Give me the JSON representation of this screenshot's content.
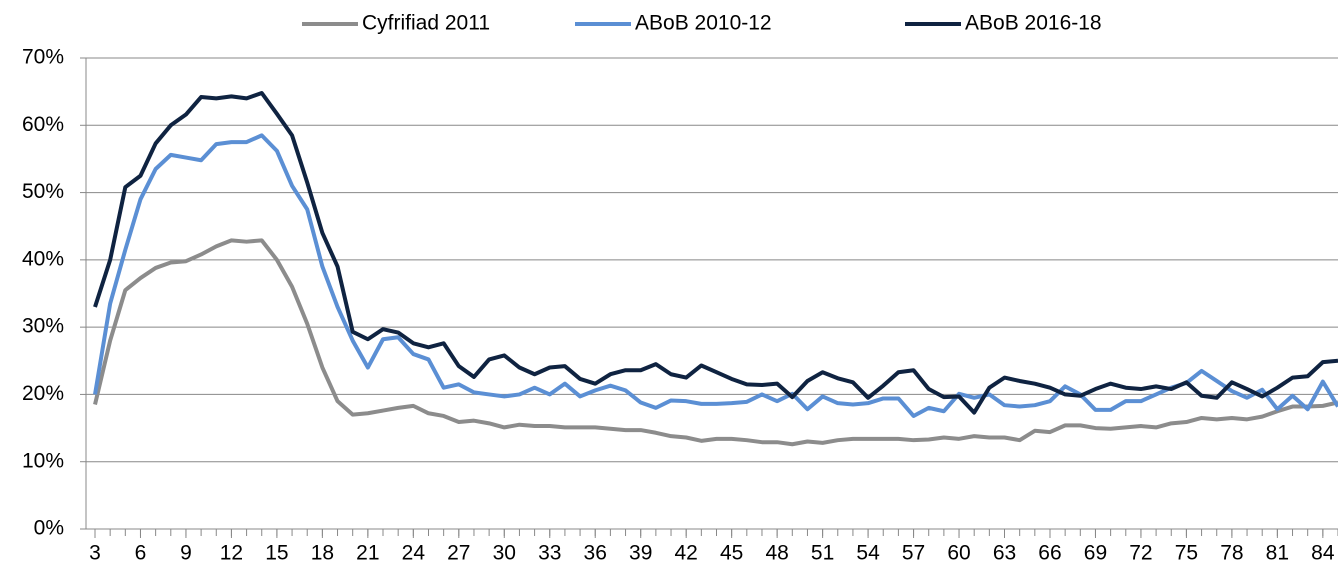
{
  "chart_data": {
    "type": "line",
    "x": [
      3,
      4,
      5,
      6,
      7,
      8,
      9,
      10,
      11,
      12,
      13,
      14,
      15,
      16,
      17,
      18,
      19,
      20,
      21,
      22,
      23,
      24,
      25,
      26,
      27,
      28,
      29,
      30,
      31,
      32,
      33,
      34,
      35,
      36,
      37,
      38,
      39,
      40,
      41,
      42,
      43,
      44,
      45,
      46,
      47,
      48,
      49,
      50,
      51,
      52,
      53,
      54,
      55,
      56,
      57,
      58,
      59,
      60,
      61,
      62,
      63,
      64,
      65,
      66,
      67,
      68,
      69,
      70,
      71,
      72,
      73,
      74,
      75,
      76,
      77,
      78,
      79,
      80,
      81,
      82,
      83,
      84,
      85
    ],
    "xlim": [
      3,
      85
    ],
    "xticks": [
      3,
      6,
      9,
      12,
      15,
      18,
      21,
      24,
      27,
      30,
      33,
      36,
      39,
      42,
      45,
      48,
      51,
      54,
      57,
      60,
      63,
      66,
      69,
      72,
      75,
      78,
      81,
      84
    ],
    "ylim": [
      0,
      70
    ],
    "yticks": [
      {
        "value": 0,
        "label": "0%"
      },
      {
        "value": 10,
        "label": "10%"
      },
      {
        "value": 20,
        "label": "20%"
      },
      {
        "value": 30,
        "label": "30%"
      },
      {
        "value": 40,
        "label": "40%"
      },
      {
        "value": 50,
        "label": "50%"
      },
      {
        "value": 60,
        "label": "60%"
      },
      {
        "value": 70,
        "label": "70%"
      }
    ],
    "grid": true,
    "legend": "top",
    "series": [
      {
        "name": "Cyfrifiad 2011",
        "color": "#8c8c8c",
        "values": [
          18.5,
          28,
          35.5,
          37.3,
          38.8,
          39.6,
          39.8,
          40.8,
          42,
          42.9,
          42.7,
          42.9,
          40,
          36,
          30.5,
          24,
          19,
          17,
          17.2,
          17.6,
          18,
          18.3,
          17.2,
          16.8,
          15.9,
          16.1,
          15.7,
          15.1,
          15.5,
          15.3,
          15.3,
          15.1,
          15.1,
          15.1,
          14.9,
          14.7,
          14.7,
          14.3,
          13.8,
          13.6,
          13.1,
          13.4,
          13.4,
          13.2,
          12.9,
          12.9,
          12.6,
          13,
          12.8,
          13.2,
          13.4,
          13.4,
          13.4,
          13.4,
          13.2,
          13.3,
          13.6,
          13.4,
          13.8,
          13.6,
          13.6,
          13.2,
          14.6,
          14.4,
          15.4,
          15.4,
          15,
          14.9,
          15.1,
          15.3,
          15.1,
          15.7,
          15.9,
          16.5,
          16.3,
          16.5,
          16.3,
          16.7,
          17.5,
          18.2,
          18.2,
          18.3,
          18.8
        ]
      },
      {
        "name": "ABoB 2010-12",
        "color": "#5b8fd4",
        "values": [
          20,
          33.5,
          41.5,
          49,
          53.5,
          55.6,
          55.2,
          54.8,
          57.2,
          57.5,
          57.5,
          58.5,
          56.2,
          51,
          47.5,
          39,
          33,
          28,
          24,
          28.2,
          28.5,
          26,
          25.2,
          21,
          21.5,
          20.3,
          20,
          19.7,
          20,
          21,
          20,
          21.6,
          19.7,
          20.6,
          21.3,
          20.6,
          18.8,
          18,
          19.1,
          19,
          18.6,
          18.6,
          18.7,
          18.9,
          20,
          19,
          20.1,
          17.8,
          19.7,
          18.7,
          18.5,
          18.7,
          19.4,
          19.4,
          16.8,
          18,
          17.5,
          20.1,
          19.5,
          20,
          18.4,
          18.2,
          18.4,
          19,
          21.2,
          20,
          17.7,
          17.7,
          19,
          19,
          20,
          21,
          21.7,
          23.5,
          22,
          20.5,
          19.5,
          20.7,
          17.8,
          19.8,
          17.8,
          21.9,
          18.2
        ]
      },
      {
        "name": "ABoB 2016-18",
        "color": "#0f2341",
        "values": [
          33,
          40,
          50.8,
          52.5,
          57.3,
          60,
          61.6,
          64.2,
          64,
          64.3,
          64,
          64.8,
          61.7,
          58.5,
          51.5,
          44,
          39,
          29.3,
          28.2,
          29.7,
          29.2,
          27.6,
          27,
          27.6,
          24.2,
          22.6,
          25.2,
          25.8,
          24,
          23,
          24,
          24.2,
          22.3,
          21.6,
          23,
          23.6,
          23.6,
          24.5,
          23,
          22.5,
          24.3,
          23.3,
          22.3,
          21.5,
          21.4,
          21.6,
          19.6,
          22,
          23.3,
          22.4,
          21.8,
          19.5,
          21.3,
          23.3,
          23.6,
          20.8,
          19.6,
          19.7,
          17.3,
          21,
          22.5,
          22,
          21.6,
          21,
          20,
          19.8,
          20.8,
          21.6,
          21,
          20.8,
          21.2,
          20.8,
          21.8,
          19.8,
          19.5,
          21.8,
          20.8,
          19.7,
          21,
          22.5,
          22.7,
          24.8,
          25
        ]
      }
    ]
  }
}
